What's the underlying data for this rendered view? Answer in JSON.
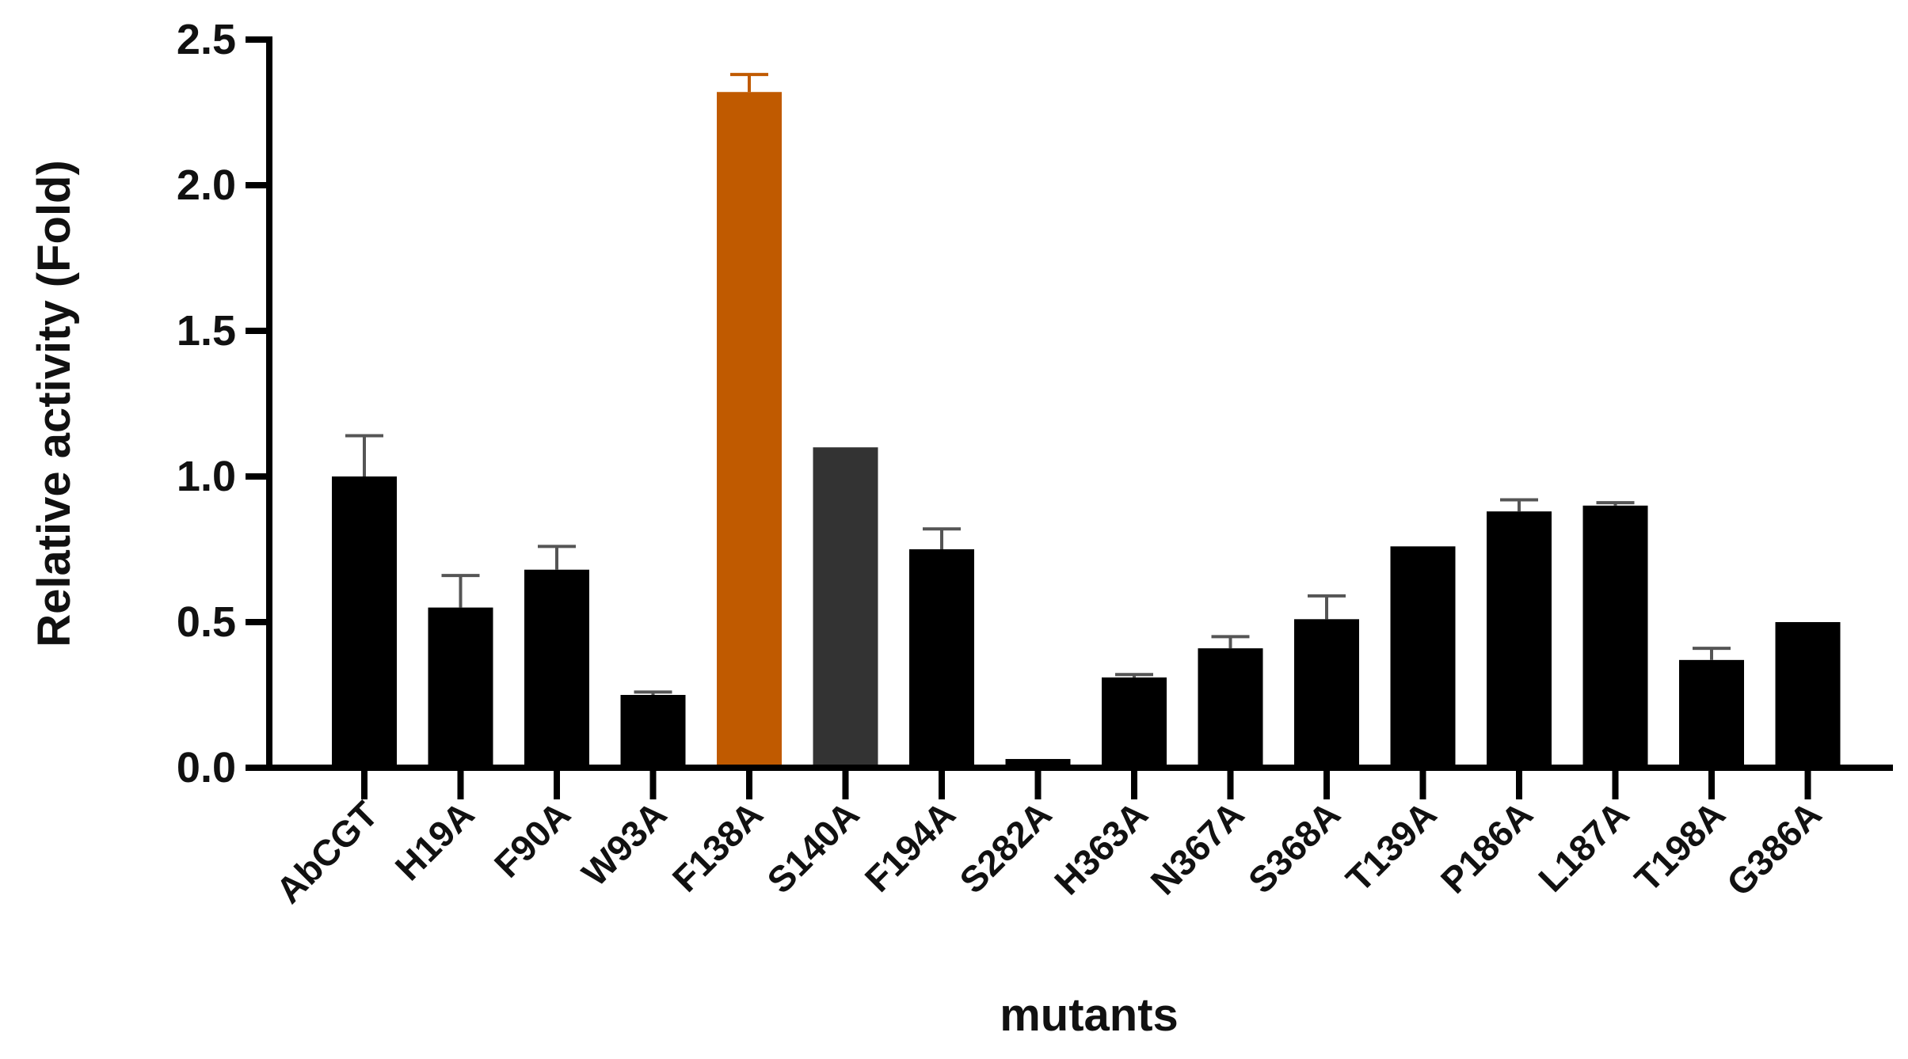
{
  "chart_data": {
    "type": "bar",
    "title": "",
    "xlabel": "mutants",
    "ylabel": "Relative activity (Fold)",
    "ylim": [
      0,
      2.5
    ],
    "yticks": [
      "0.0",
      "0.5",
      "1.0",
      "1.5",
      "2.0",
      "2.5"
    ],
    "categories": [
      "AbCGT",
      "H19A",
      "F90A",
      "W93A",
      "F138A",
      "S140A",
      "F194A",
      "S282A",
      "H363A",
      "N367A",
      "S368A",
      "T139A",
      "P186A",
      "L187A",
      "T198A",
      "G386A"
    ],
    "values": [
      1.0,
      0.55,
      0.68,
      0.25,
      2.32,
      1.1,
      0.75,
      0.03,
      0.31,
      0.41,
      0.51,
      0.76,
      0.88,
      0.9,
      0.37,
      0.5
    ],
    "errors": [
      0.14,
      0.11,
      0.08,
      0.01,
      0.06,
      0.0,
      0.07,
      0.0,
      0.01,
      0.04,
      0.08,
      0.0,
      0.04,
      0.01,
      0.04,
      0.0
    ],
    "colors": [
      "#000000",
      "#000000",
      "#000000",
      "#000000",
      "#c05a00",
      "#333333",
      "#000000",
      "#000000",
      "#000000",
      "#000000",
      "#000000",
      "#000000",
      "#000000",
      "#000000",
      "#000000",
      "#000000"
    ],
    "grid": false,
    "legend": "none"
  }
}
